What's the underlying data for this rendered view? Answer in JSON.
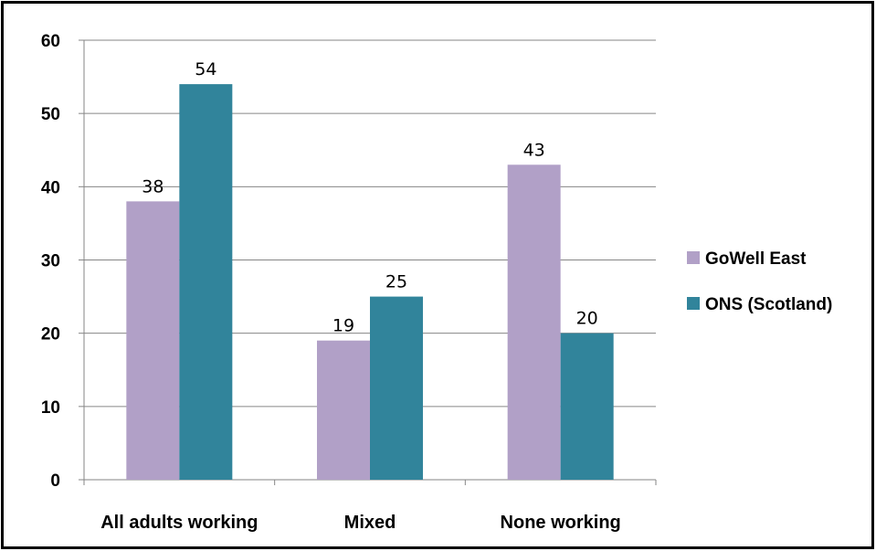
{
  "chart_data": {
    "type": "bar",
    "title": "",
    "xlabel": "",
    "ylabel": "",
    "categories": [
      "All adults working",
      "Mixed",
      "None working"
    ],
    "series": [
      {
        "name": "GoWell East",
        "values": [
          38,
          19,
          43
        ]
      },
      {
        "name": "ONS (Scotland)",
        "values": [
          54,
          25,
          20
        ]
      }
    ],
    "data_labels": [
      [
        "38",
        "19",
        "43"
      ],
      [
        "54",
        "25",
        "20"
      ]
    ],
    "ylim": [
      0,
      60
    ],
    "y_ticks": [
      0,
      10,
      20,
      30,
      40,
      50,
      60
    ],
    "y_tick_labels": [
      "0",
      "10",
      "20",
      "30",
      "40",
      "50",
      "60"
    ],
    "grid": true,
    "legend_position": "right",
    "colors": {
      "series": [
        "#b1a0c7",
        "#31849b"
      ],
      "grid": "#868686",
      "axis": "#868686"
    }
  }
}
